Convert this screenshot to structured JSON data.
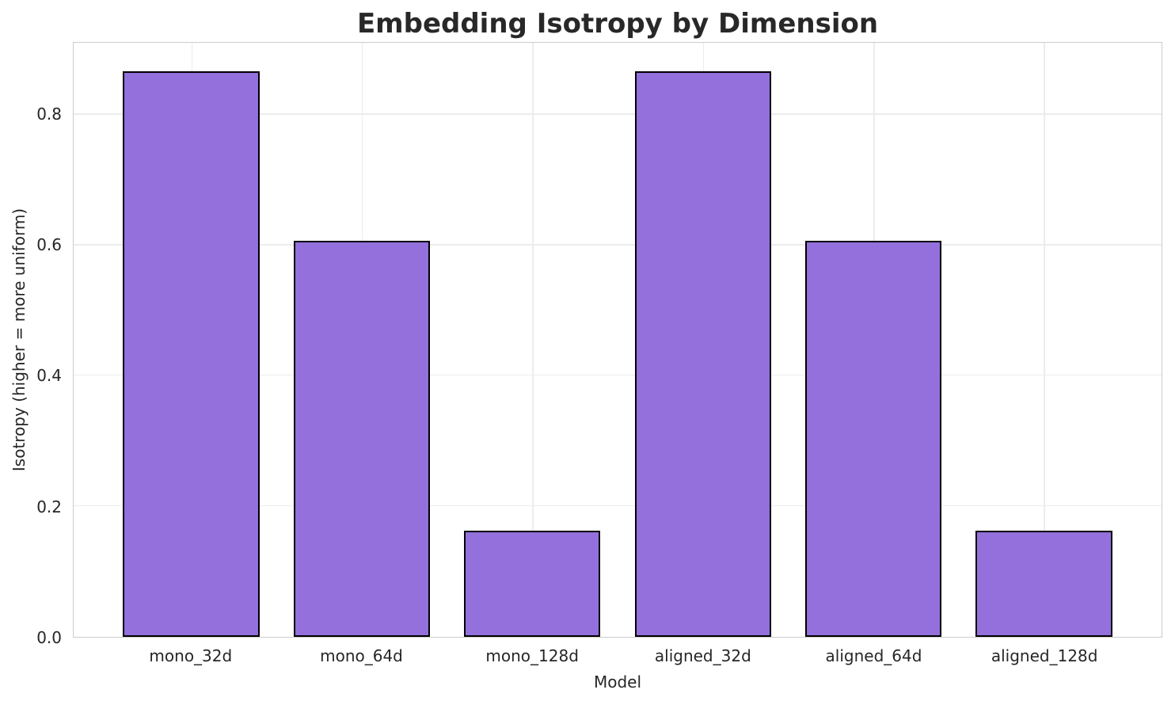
{
  "chart_data": {
    "type": "bar",
    "title": "Embedding Isotropy by Dimension",
    "xlabel": "Model",
    "ylabel": "Isotropy (higher = more uniform)",
    "categories": [
      "mono_32d",
      "mono_64d",
      "mono_128d",
      "aligned_32d",
      "aligned_64d",
      "aligned_128d"
    ],
    "values": [
      0.866,
      0.607,
      0.163,
      0.866,
      0.607,
      0.163
    ],
    "yticks": [
      0.0,
      0.2,
      0.4,
      0.6,
      0.8
    ],
    "ytick_labels": [
      "0.0",
      "0.2",
      "0.4",
      "0.6",
      "0.8"
    ],
    "ylim": [
      0,
      0.91
    ],
    "bar_width_fraction": 0.8,
    "grid": true,
    "legend_position": "none",
    "colors": {
      "bar_fill": "#9370DB",
      "bar_edge": "#000000",
      "grid": "#ececec",
      "spine": "#cccccc",
      "text": "#262626",
      "title": "#282828"
    }
  }
}
